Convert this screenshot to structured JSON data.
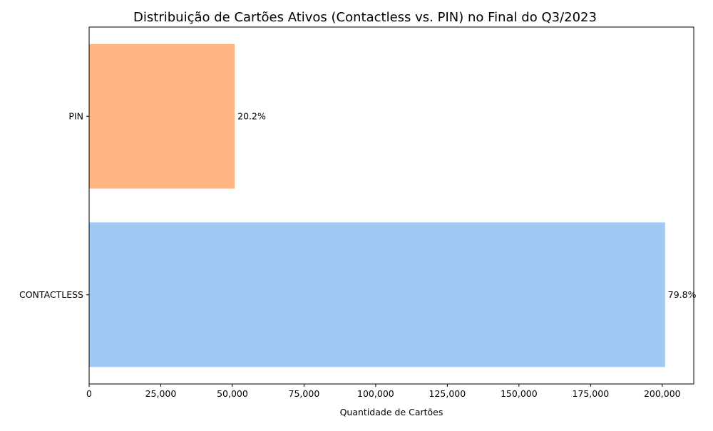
{
  "chart_data": {
    "type": "bar",
    "orientation": "horizontal",
    "title": "Distribuição de Cartões Ativos (Contactless vs. PIN) no Final do Q3/2023",
    "xlabel": "Quantidade de Cartões",
    "ylabel": "",
    "categories": [
      "CONTACTLESS",
      "PIN"
    ],
    "values": [
      201000,
      50800
    ],
    "percent_labels": [
      "79.8%",
      "20.2%"
    ],
    "colors": [
      "#a1c9f4",
      "#ffb482"
    ],
    "xlim": [
      0,
      211000
    ],
    "x_ticks": [
      0,
      25000,
      50000,
      75000,
      100000,
      125000,
      150000,
      175000,
      200000
    ],
    "x_tick_labels": [
      "0",
      "25,000",
      "50,000",
      "75,000",
      "100,000",
      "125,000",
      "150,000",
      "175,000",
      "200,000"
    ],
    "grid": false,
    "legend": "none"
  }
}
